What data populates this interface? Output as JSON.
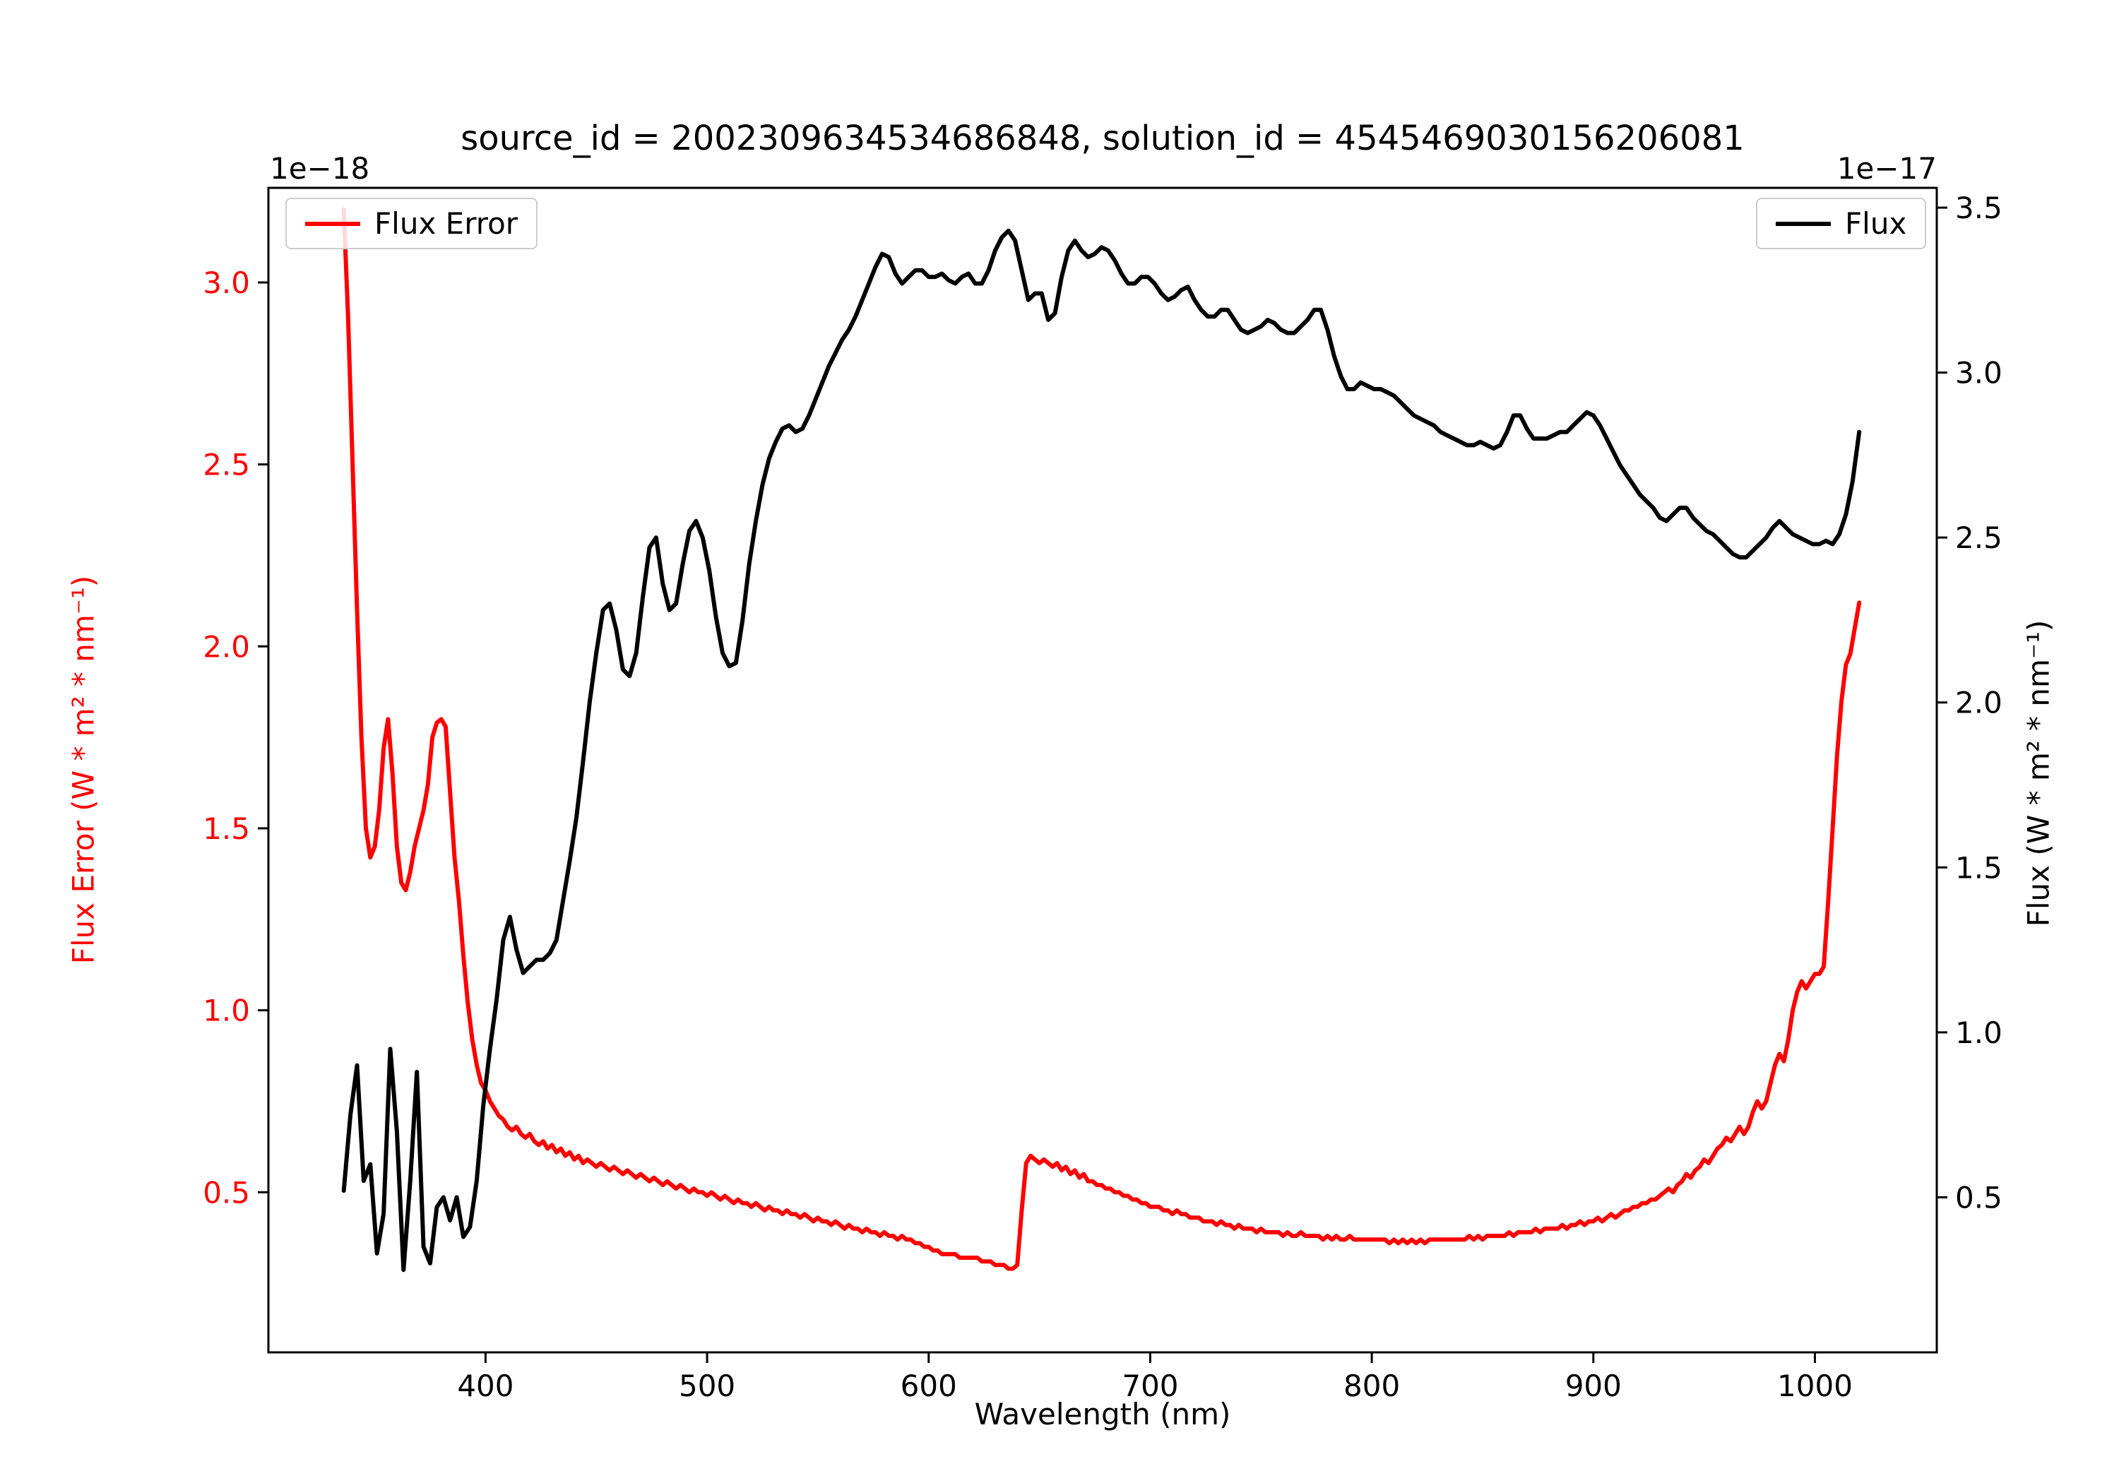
{
  "colors": {
    "flux_error": "#ff0000",
    "flux": "#000000",
    "legend_border": "#cccccc",
    "spine": "#000000"
  },
  "legend_left": {
    "label": "Flux Error"
  },
  "legend_right": {
    "label": "Flux"
  },
  "chart_data": {
    "type": "line",
    "title": "source_id = 2002309634534686848, solution_id = 4545469030156206081",
    "xlabel": "Wavelength (nm)",
    "ylabel_left": "Flux Error (W * m² * nm⁻¹)",
    "ylabel_right": "Flux (W * m² * nm⁻¹)",
    "offset_left": "1e−18",
    "offset_right": "1e−17",
    "grid": false,
    "legend_positions": [
      "upper left",
      "upper right"
    ],
    "xlim": [
      302,
      1055
    ],
    "ylim_left": [
      0.06,
      3.26
    ],
    "ylim_right": [
      0.03,
      3.56
    ],
    "xticks": [
      400,
      500,
      600,
      700,
      800,
      900,
      1000
    ],
    "yticks_left": [
      0.5,
      1.0,
      1.5,
      2.0,
      2.5,
      3.0
    ],
    "yticks_right": [
      0.5,
      1.0,
      1.5,
      2.0,
      2.5,
      3.0,
      3.5
    ],
    "series": [
      {
        "name": "Flux Error",
        "axis": "left",
        "color": "#ff0000",
        "units_scale": "1e-18",
        "x_start": 336,
        "x_step": 2,
        "y": [
          3.2,
          2.9,
          2.5,
          2.1,
          1.75,
          1.5,
          1.42,
          1.45,
          1.55,
          1.72,
          1.8,
          1.65,
          1.45,
          1.35,
          1.33,
          1.38,
          1.45,
          1.5,
          1.55,
          1.62,
          1.75,
          1.79,
          1.8,
          1.78,
          1.6,
          1.42,
          1.3,
          1.15,
          1.02,
          0.92,
          0.85,
          0.8,
          0.78,
          0.75,
          0.73,
          0.71,
          0.7,
          0.68,
          0.67,
          0.68,
          0.66,
          0.65,
          0.66,
          0.64,
          0.63,
          0.64,
          0.62,
          0.63,
          0.61,
          0.62,
          0.6,
          0.61,
          0.59,
          0.6,
          0.58,
          0.59,
          0.58,
          0.57,
          0.58,
          0.57,
          0.56,
          0.57,
          0.56,
          0.55,
          0.56,
          0.55,
          0.54,
          0.55,
          0.54,
          0.53,
          0.54,
          0.53,
          0.52,
          0.53,
          0.52,
          0.51,
          0.52,
          0.51,
          0.5,
          0.51,
          0.5,
          0.5,
          0.49,
          0.5,
          0.49,
          0.48,
          0.49,
          0.48,
          0.47,
          0.48,
          0.47,
          0.47,
          0.46,
          0.47,
          0.46,
          0.45,
          0.46,
          0.45,
          0.45,
          0.44,
          0.45,
          0.44,
          0.44,
          0.43,
          0.44,
          0.43,
          0.42,
          0.43,
          0.42,
          0.42,
          0.41,
          0.42,
          0.41,
          0.4,
          0.41,
          0.4,
          0.4,
          0.39,
          0.4,
          0.39,
          0.39,
          0.38,
          0.39,
          0.38,
          0.38,
          0.37,
          0.38,
          0.37,
          0.37,
          0.36,
          0.36,
          0.35,
          0.35,
          0.34,
          0.34,
          0.33,
          0.33,
          0.33,
          0.33,
          0.32,
          0.32,
          0.32,
          0.32,
          0.32,
          0.31,
          0.31,
          0.31,
          0.3,
          0.3,
          0.3,
          0.29,
          0.29,
          0.3,
          0.45,
          0.58,
          0.6,
          0.59,
          0.58,
          0.59,
          0.58,
          0.57,
          0.58,
          0.56,
          0.57,
          0.55,
          0.56,
          0.54,
          0.55,
          0.53,
          0.53,
          0.52,
          0.52,
          0.51,
          0.51,
          0.5,
          0.5,
          0.49,
          0.49,
          0.48,
          0.48,
          0.47,
          0.47,
          0.46,
          0.46,
          0.46,
          0.45,
          0.45,
          0.44,
          0.45,
          0.44,
          0.44,
          0.43,
          0.43,
          0.43,
          0.42,
          0.42,
          0.42,
          0.41,
          0.42,
          0.41,
          0.41,
          0.4,
          0.41,
          0.4,
          0.4,
          0.4,
          0.39,
          0.4,
          0.39,
          0.39,
          0.39,
          0.39,
          0.38,
          0.39,
          0.38,
          0.38,
          0.39,
          0.38,
          0.38,
          0.38,
          0.38,
          0.37,
          0.38,
          0.37,
          0.38,
          0.37,
          0.37,
          0.38,
          0.37,
          0.37,
          0.37,
          0.37,
          0.37,
          0.37,
          0.37,
          0.37,
          0.36,
          0.37,
          0.36,
          0.37,
          0.36,
          0.37,
          0.36,
          0.37,
          0.36,
          0.37,
          0.37,
          0.37,
          0.37,
          0.37,
          0.37,
          0.37,
          0.37,
          0.37,
          0.38,
          0.37,
          0.38,
          0.37,
          0.38,
          0.38,
          0.38,
          0.38,
          0.38,
          0.39,
          0.38,
          0.39,
          0.39,
          0.39,
          0.39,
          0.4,
          0.39,
          0.4,
          0.4,
          0.4,
          0.4,
          0.41,
          0.4,
          0.41,
          0.41,
          0.42,
          0.41,
          0.42,
          0.42,
          0.43,
          0.42,
          0.43,
          0.44,
          0.43,
          0.44,
          0.45,
          0.45,
          0.46,
          0.46,
          0.47,
          0.47,
          0.48,
          0.48,
          0.49,
          0.5,
          0.51,
          0.5,
          0.52,
          0.53,
          0.55,
          0.54,
          0.56,
          0.57,
          0.59,
          0.58,
          0.6,
          0.62,
          0.63,
          0.65,
          0.64,
          0.66,
          0.68,
          0.66,
          0.68,
          0.72,
          0.75,
          0.73,
          0.75,
          0.8,
          0.85,
          0.88,
          0.86,
          0.92,
          1.0,
          1.05,
          1.08,
          1.06,
          1.08,
          1.1,
          1.1,
          1.12,
          1.3,
          1.5,
          1.7,
          1.85,
          1.95,
          1.98,
          2.05,
          2.12
        ]
      },
      {
        "name": "Flux",
        "axis": "right",
        "color": "#000000",
        "units_scale": "1e-17",
        "x_start": 336,
        "x_step": 3,
        "y": [
          0.52,
          0.75,
          0.9,
          0.55,
          0.6,
          0.33,
          0.45,
          0.95,
          0.7,
          0.28,
          0.55,
          0.88,
          0.35,
          0.3,
          0.47,
          0.5,
          0.43,
          0.5,
          0.38,
          0.41,
          0.55,
          0.78,
          0.95,
          1.1,
          1.28,
          1.35,
          1.25,
          1.18,
          1.2,
          1.22,
          1.22,
          1.24,
          1.28,
          1.4,
          1.52,
          1.65,
          1.82,
          2.0,
          2.15,
          2.28,
          2.3,
          2.22,
          2.1,
          2.08,
          2.15,
          2.32,
          2.47,
          2.5,
          2.36,
          2.28,
          2.3,
          2.42,
          2.52,
          2.55,
          2.5,
          2.4,
          2.26,
          2.15,
          2.11,
          2.12,
          2.25,
          2.42,
          2.55,
          2.66,
          2.74,
          2.79,
          2.83,
          2.84,
          2.82,
          2.83,
          2.87,
          2.92,
          2.97,
          3.02,
          3.06,
          3.1,
          3.13,
          3.17,
          3.22,
          3.27,
          3.32,
          3.36,
          3.35,
          3.3,
          3.27,
          3.29,
          3.31,
          3.31,
          3.29,
          3.29,
          3.3,
          3.28,
          3.27,
          3.29,
          3.3,
          3.27,
          3.27,
          3.31,
          3.37,
          3.41,
          3.43,
          3.4,
          3.31,
          3.22,
          3.24,
          3.24,
          3.16,
          3.18,
          3.29,
          3.37,
          3.4,
          3.37,
          3.35,
          3.36,
          3.38,
          3.37,
          3.34,
          3.3,
          3.27,
          3.27,
          3.29,
          3.29,
          3.27,
          3.24,
          3.22,
          3.23,
          3.25,
          3.26,
          3.22,
          3.19,
          3.17,
          3.17,
          3.19,
          3.19,
          3.16,
          3.13,
          3.12,
          3.13,
          3.14,
          3.16,
          3.15,
          3.13,
          3.12,
          3.12,
          3.14,
          3.16,
          3.19,
          3.19,
          3.13,
          3.05,
          2.99,
          2.95,
          2.95,
          2.97,
          2.96,
          2.95,
          2.95,
          2.94,
          2.93,
          2.91,
          2.89,
          2.87,
          2.86,
          2.85,
          2.84,
          2.82,
          2.81,
          2.8,
          2.79,
          2.78,
          2.78,
          2.79,
          2.78,
          2.77,
          2.78,
          2.82,
          2.87,
          2.87,
          2.83,
          2.8,
          2.8,
          2.8,
          2.81,
          2.82,
          2.82,
          2.84,
          2.86,
          2.88,
          2.87,
          2.84,
          2.8,
          2.76,
          2.72,
          2.69,
          2.66,
          2.63,
          2.61,
          2.59,
          2.56,
          2.55,
          2.57,
          2.59,
          2.59,
          2.56,
          2.54,
          2.52,
          2.51,
          2.49,
          2.47,
          2.45,
          2.44,
          2.44,
          2.46,
          2.48,
          2.5,
          2.53,
          2.55,
          2.53,
          2.51,
          2.5,
          2.49,
          2.48,
          2.48,
          2.49,
          2.48,
          2.51,
          2.57,
          2.67,
          2.82
        ]
      }
    ]
  }
}
